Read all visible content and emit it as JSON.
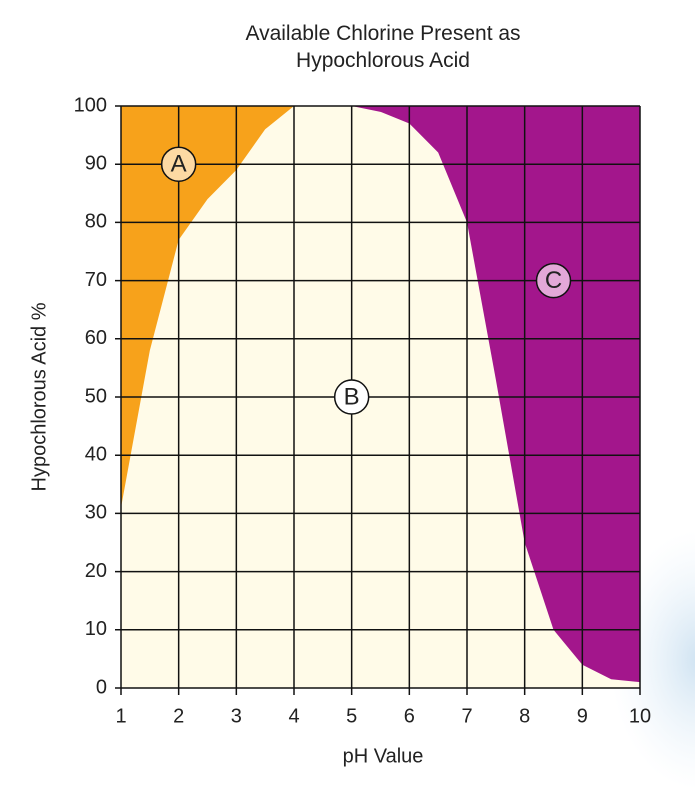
{
  "chart_data": {
    "type": "area",
    "title": "Available Chlorine Present as Hypochlorous Acid",
    "x_label": "pH Value",
    "y_label": "Hypochlorous Acid %",
    "x": [
      1,
      1.5,
      2,
      2.5,
      3,
      3.5,
      4,
      4.5,
      5,
      5.5,
      6,
      6.5,
      7,
      7.5,
      8,
      8.5,
      9,
      9.5,
      10
    ],
    "values": [
      31,
      58,
      77,
      84,
      89,
      96,
      100,
      100,
      100,
      99,
      97,
      92,
      80,
      53,
      25,
      10,
      4,
      1.5,
      1
    ],
    "colors": {
      "below": "#fffbe8",
      "left": "#f7a21b",
      "right": "#a3168c",
      "grid": "#111111"
    },
    "xlim": [
      1,
      10
    ],
    "xticks": [
      1,
      2,
      3,
      4,
      5,
      6,
      7,
      8,
      9,
      10
    ],
    "ylim": [
      0,
      100
    ],
    "yticks": [
      0,
      10,
      20,
      30,
      40,
      50,
      60,
      70,
      80,
      90,
      100
    ],
    "grid": true,
    "annotations": [
      {
        "text": "A",
        "x": 2,
        "y": 90,
        "color": "#fdd9a3"
      },
      {
        "text": "B",
        "x": 5,
        "y": 50,
        "color": "#ffffff"
      },
      {
        "text": "C",
        "x": 8.5,
        "y": 70,
        "color": "#e3a8d8"
      }
    ]
  }
}
